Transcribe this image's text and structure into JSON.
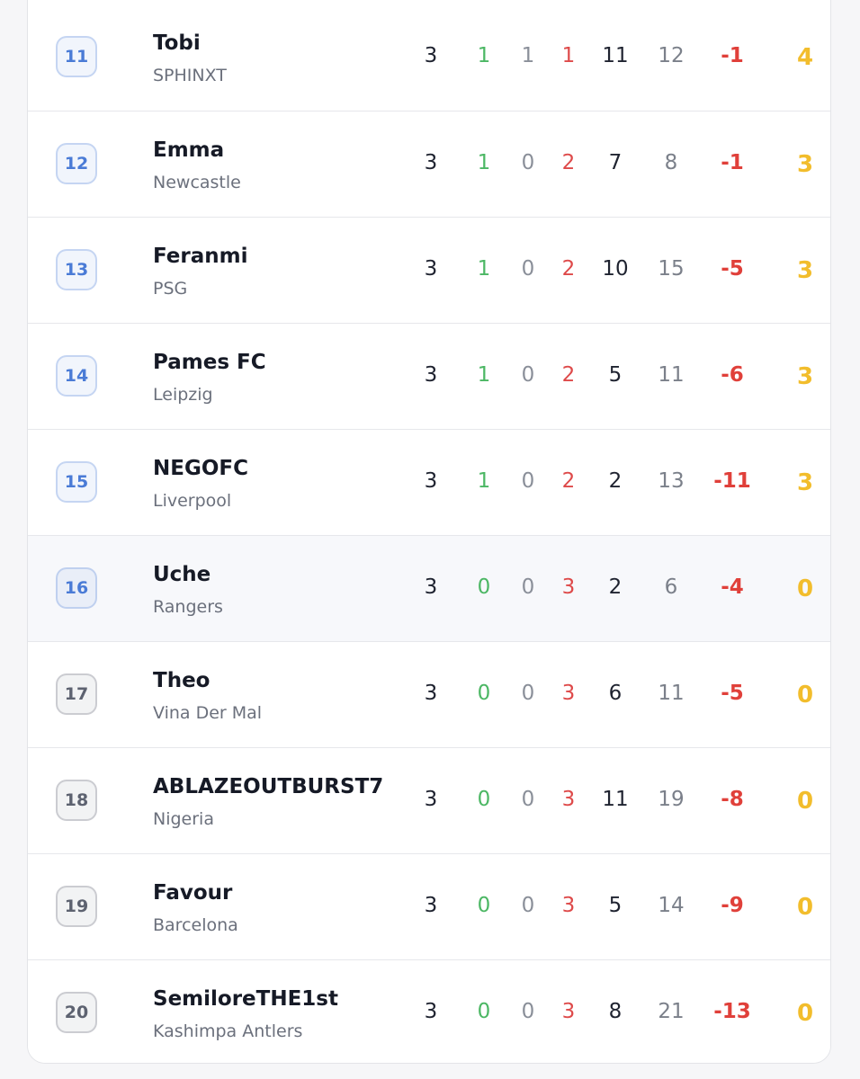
{
  "table": {
    "rows": [
      {
        "rank": 11,
        "name": "Tobi",
        "team": "SPHINXT",
        "p": 3,
        "w": 1,
        "d": 1,
        "l": 1,
        "gf": 11,
        "ga": 12,
        "gd": -1,
        "pts": 4,
        "badge_color": "#4a7bd6",
        "background": "#ffffff"
      },
      {
        "rank": 12,
        "name": "Emma",
        "team": "Newcastle",
        "p": 3,
        "w": 1,
        "d": 0,
        "l": 2,
        "gf": 7,
        "ga": 8,
        "gd": -1,
        "pts": 3,
        "badge_color": "#4a7bd6",
        "background": "#ffffff"
      },
      {
        "rank": 13,
        "name": "Feranmi",
        "team": "PSG",
        "p": 3,
        "w": 1,
        "d": 0,
        "l": 2,
        "gf": 10,
        "ga": 15,
        "gd": -5,
        "pts": 3,
        "badge_color": "#4a7bd6",
        "background": "#ffffff"
      },
      {
        "rank": 14,
        "name": "Pames FC",
        "team": "Leipzig",
        "p": 3,
        "w": 1,
        "d": 0,
        "l": 2,
        "gf": 5,
        "ga": 11,
        "gd": -6,
        "pts": 3,
        "badge_color": "#4a7bd6",
        "background": "#ffffff"
      },
      {
        "rank": 15,
        "name": "NEGOFC",
        "team": "Liverpool",
        "p": 3,
        "w": 1,
        "d": 0,
        "l": 2,
        "gf": 2,
        "ga": 13,
        "gd": -11,
        "pts": 3,
        "badge_color": "#4a7bd6",
        "background": "#ffffff"
      },
      {
        "rank": 16,
        "name": "Uche",
        "team": "Rangers",
        "p": 3,
        "w": 0,
        "d": 0,
        "l": 3,
        "gf": 2,
        "ga": 6,
        "gd": -4,
        "pts": 0,
        "badge_color": "#4a7bd6",
        "background": "#f7f8fb"
      },
      {
        "rank": 17,
        "name": "Theo",
        "team": "Vina Der Mal",
        "p": 3,
        "w": 0,
        "d": 0,
        "l": 3,
        "gf": 6,
        "ga": 11,
        "gd": -5,
        "pts": 0,
        "badge_color": "#5d6270",
        "background": "#ffffff"
      },
      {
        "rank": 18,
        "name": "ABLAZEOUTBURST7",
        "team": "Nigeria",
        "p": 3,
        "w": 0,
        "d": 0,
        "l": 3,
        "gf": 11,
        "ga": 19,
        "gd": -8,
        "pts": 0,
        "badge_color": "#5d6270",
        "background": "#ffffff"
      },
      {
        "rank": 19,
        "name": "Favour",
        "team": "Barcelona",
        "p": 3,
        "w": 0,
        "d": 0,
        "l": 3,
        "gf": 5,
        "ga": 14,
        "gd": -9,
        "pts": 0,
        "badge_color": "#5d6270",
        "background": "#ffffff"
      },
      {
        "rank": 20,
        "name": "SemiloreTHE1st",
        "team": "Kashimpa Antlers",
        "p": 3,
        "w": 0,
        "d": 0,
        "l": 3,
        "gf": 8,
        "ga": 21,
        "gd": -13,
        "pts": 0,
        "badge_color": "#5d6270",
        "background": "#ffffff"
      }
    ]
  }
}
